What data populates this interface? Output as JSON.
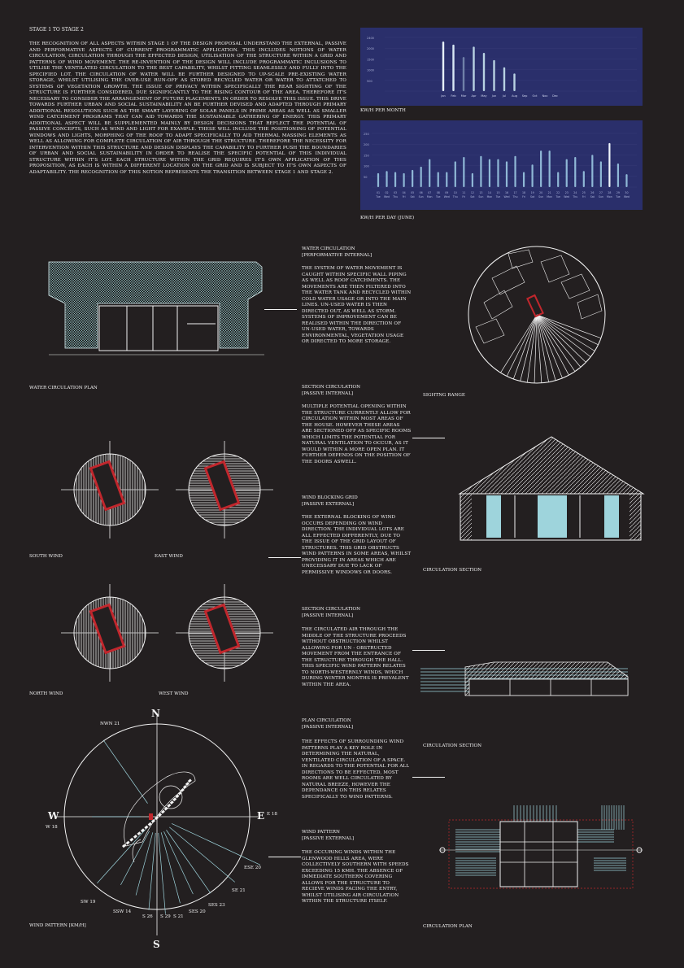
{
  "intro": {
    "heading": "STAGE 1 TO STAGE 2",
    "body": "THE RECOGNITION OF ALL ASPECTS WITHIN STAGE 1 OF THE DESIGN PROPOSAL UNDERSTAND THE EXTERNAL, PASSIVE AND PERFORMATIVE ASPECTS OF CURRENT PROGRAMMATIC APPLICATION. THIS INCLUDES NOTIONS OF WATER CIRCULATION, CIRCULATION THROUGH THE EFFECTED DESIGN, UTILISATION OF THE STRUCTURE WITHIN A GRID AND PATTERNS OF WIND MOVEMENT. THE RE-INVENTION OF THE DESIGN WILL INCLUDE PROGRAMMATIC INCLUSIONS TO UTILISE THE VENTILATED CIRCULATION TO THE BEST CAPABILITY, WHILST FITTING SEAMLESSLY AND FULLY INTO THE SPECIFIED LOT. THE CIRCULATION OF WATER WILL BE FURTHER DESIGNED TO UP-SCALE PRE-EXISTING WATER STORAGE, WHILST UTILISING THE OVER-USE RUN-OFF AS STORED RECYCLED WATER OR WATER TO ATTATCHED TO SYSTEMS OF VEGETATION GROWTH. THE ISSUE OF PRIVACY WITHIN SPECIFICALLY THE REAR SIGHTING OF THE STRUCTURE IS FURTHER CONSIDERED, DUE SIGNIFICANTLY TO THE RISING CONTOUR OF THE AREA. THEREFORE IT'S NECESSARY TO CONSIDER THE ARRANGEMENT OF FUTURE PLACEMENTS IN ORDER TO RESOLVE THIS ISSUE. THIS DRIVE TOWARDS FURTHER URBAN AND SOCIAL SUSTAINABILITY AN BE FURTHER DEVISED AND ADAPTED THROUGH PRIMARY ADDITIONAL RESOLUTIONS SUCH AS THE SMART LAYERING OF SOLAR PANELS IN PRIME AREAS AS WELL AS SMALLER WIND CATCHMENT PROGRAMS THAT CAN AID TOWARDS THE SUSTAINABLE GATHERING OF ENERGY. THIS PRIMARY ADDITIONAL ASPECT WILL BE SUPPLEMENTED MAINLY BY DESIGN DECISIONS THAT REFLECT THE POTENTIAL OF PASSIVE CONCEPTS, SUCH AS WIND AND LIGHT FOR EXAMPLE. THESE WILL INCLUDE THE POSITIONING OF POTENTIAL WINDOWS AND LIGHTS, MORPHING OF THE ROOF TO ADAPT SPECIFICALLY TO AID THERMAL MASSING ELEMENTS AS WELL AS ALLOWING FOR COMPLETE CIRCULATION OF AIR THROUGH THE STRUCTURE. THEREFORE THE NECESSITY FOR INTERVENTION WITHIN THIS STRUCTURE AND DESIGN DISPLAYS THE CAPABILITY TO FURTHER PUSH THE BOUNDARIES OF URBAN AND SOCIAL SUSTAINABILITY IN ORDER TO REALISE THE SPECIFIC POTENTIAL OF THIS INDIVIDUAL STRUCTURE WITHIN IT'S LOT. EACH STRUCTURE WITHIN THE GRID REQUIRES IT'S OWN APPLICATION OF THIS PROPOSITION, AS EACH IS WITHIN A DIFFERENT LOCATION ON THE GRID AND IS SUBJECT TO IT'S OWN ASPECTS OF ADAPTABILITY. THE RECOGNITION OF THIS NOTION REPRESENTS THE TRANSITION BETWEEN STAGE 1 AND STAGE 2."
  },
  "chart_data": [
    {
      "type": "bar",
      "title": "KW/H PER MONTH",
      "categories": [
        "Jan",
        "Feb",
        "Mar",
        "Apr",
        "May",
        "Jun",
        "Jul",
        "Aug",
        "Sep",
        "Oct",
        "Nov",
        "Dec"
      ],
      "values": [
        2400,
        2250,
        1650,
        2150,
        1850,
        1500,
        1150,
        850,
        0,
        0,
        0,
        0
      ],
      "highlight": [
        "#e6f0f8",
        "#d8e8f4",
        "#6f80a8",
        "#b8d2e2",
        "#b8d2e2",
        "#b8d2e2",
        "#b8d2e2",
        "#b8d2e2",
        "",
        "",
        "",
        ""
      ],
      "ytick_labels": [
        "2400",
        "2000",
        "1500",
        "1000",
        "500",
        ""
      ],
      "ylim": [
        0,
        2600
      ]
    },
    {
      "type": "bar",
      "title": "KW/H PER DAY (JUNE)",
      "categories": [
        "01",
        "02",
        "03",
        "04",
        "05",
        "06",
        "07",
        "08",
        "09",
        "10",
        "11",
        "12",
        "13",
        "14",
        "15",
        "16",
        "17",
        "18",
        "19",
        "20",
        "21",
        "22",
        "23",
        "24",
        "25",
        "26",
        "27",
        "28",
        "29",
        "30"
      ],
      "day_labels": [
        "Tue",
        "Wed",
        "Thu",
        "Fri",
        "Sat",
        "Sun",
        "Mon",
        "Tue",
        "Wed",
        "Thu",
        "Fri",
        "Sat",
        "Sun",
        "Mon",
        "Tue",
        "Wed",
        "Thu",
        "Fri",
        "Sat",
        "Sun",
        "Mon",
        "Tue",
        "Wed",
        "Thu",
        "Fri",
        "Sat",
        "Sun",
        "Mon",
        "Tue",
        "Wed"
      ],
      "values": [
        65,
        75,
        70,
        65,
        80,
        95,
        130,
        70,
        70,
        120,
        140,
        65,
        145,
        130,
        130,
        120,
        145,
        70,
        105,
        170,
        170,
        70,
        130,
        140,
        75,
        150,
        120,
        205,
        110,
        60
      ],
      "ytick_labels": [
        "250",
        "200",
        "150",
        "100",
        "50",
        ""
      ],
      "ylim": [
        0,
        250
      ]
    }
  ],
  "water": {
    "heading": "WATER CIRCULATION",
    "sub": "[PERFORMATIVE INTERNAL]",
    "body": "THE SYSTEM OF WATER MOVEMENT IS CAUGHT WITHIN SPECIFIC WALL PIPING AS WELL AS ROOF CATCHMENTS. THE MOVEMENTS ARE THEN FILTERED INTO THE WATER TANK AND RECYCLED WITHIN COLD WATER USAGE OR INTO THE MAIN LINES. UN-USED WATER IS THEN DIRECTED OUT, AS WELL AS STORM. SYSTEMS OF IMPROVEMENT CAN BE REALISED WITHIN THE DIRECTION OF UN-USED WATER, TOWARDS ENVIRONMENTAL, VEGETATION USAGE OR DIRECTED TO MORE STORAGE.",
    "plan_label": "WATER CIRCULATION PLAN",
    "sight_label": "SIGHTNG RANGE"
  },
  "section1": {
    "heading": "SECTION CIRCULATION",
    "sub": "[PASSIVE INTERNAL]",
    "body": "MULTIPLE POTENTIAL OPENING WITHIN THE STRUCTURE CURRENTLY ALLOW FOR CIRCULATION WITHIN MOST AREAS OF THE HOUSE. HOWEVER THESE AREAS ARE SECTIONED OFF AS SPECIFIC ROOMS WHICH LIMITS THE POTENTIAL FOR NATURAL VENTILATION TO OCCUR, AS IT WOULD WITHIN A MORE OPEN PLAN. IT FURTHER DEPENDS ON THE POSITION OF THE DOORS ASWELL.",
    "label": "CIRCULATION SECTION"
  },
  "grid": {
    "heading": "WIND BLOCKING GRID",
    "sub": "[PASSIVE EXTERNAL]",
    "body": "THE EXTERNAL BLOCKING OF WIND OCCURS DEPENDING ON WIND DIRECTION. THE INDIVIDUAL LOTS ARE ALL EFFECTED DIFFERENTLY, DUE TO THE ISSUE OF THE GRID LAYOUT OF STRUCTURES. THIS GRID OBSTRUCTS WIND PATTERNS IN SOME AREAS, WHILST PROVIDING IT IN AREAS WHICH ARE UNECESSARY DUE TO LACK OF PERMISSIVE WINDOWS OR DOORS.",
    "south": "SOUTH WIND",
    "east": "EAST WIND",
    "north": "NORTH WIND",
    "west": "WEST WIND"
  },
  "section2": {
    "heading": "SECTION CIRCULATION",
    "sub": "[PASSIVE INTERNAL]",
    "body": "THE CIRCULATED AIR THROUGH THE MIDDLE OF THE STRUCTURE PROCEEDS WITHOUT OBSTRUCTION WHILST ALLOWING FOR UN - OBSTRUCTED MOVEMENT FROM THE ENTRANCE OF THE STRUCTURE THROUGH THE HALL. THIS SPECIFIC WIND PATTERN RELATES TO NORTH-WESTERNLY WINDS, WHICH DURING WINTER MONTHS IS PREVALENT WITHIN THE AREA.",
    "label": "CIRCULATION SECTION"
  },
  "plan": {
    "heading": "PLAN CIRCULATION",
    "sub": "[PASSIVE INTERNAL]",
    "body": "THE EFFECTS OF SURROUNDING WIND PATTERNS PLAY A KEY ROLE IN DETERMINING THE NATURAL, VENTILATED CIRCULATION OF A SPACE. IN REGARDS TO THE POTENTIAL FOR ALL DIRECTIONS TO BE EFFECTED, MOST ROOMS ARE WELL CIRCULATED BY NATURAL BREEZE, HOWEVER THE DEPENDANCE ON THIS RELATES SPECIFICALLY TO WIND PATTERNS.",
    "label": "CIRCULATION PLAN"
  },
  "windpattern": {
    "heading": "WIND PATTERN",
    "sub": "[PASSIVE EXTERNAL]",
    "body": "THE OCCURING WINDS WITHIN THE GLENWOOD HILLS AREA, WERE COLLECTIVELY SOUTHERN WITH SPEEDS EXCEEDING 15 KMH. THE ABSENCE OF IMMEDIATE SOUTHERN COVERING ALLOWS FOR THE STRUCTURE TO RECIEVE WINDS FACING THE ENTRY, WHILST UTILISING AIR CIRCULATION WITHIN THE STRUCTURE ITSELF.",
    "label": "WIND PATTERN [KM/H]",
    "n": "N",
    "s": "S",
    "e": "E",
    "w": "W",
    "nwn": "NWN 21",
    "e18": "E 18",
    "w18": "W 18",
    "ese": "ESE 20",
    "se": "SE 21",
    "ses": "SES 23",
    "sw": "SW 19",
    "ssw": "SSW 14",
    "s26": "S 26",
    "s29": "S 29",
    "s21": "S 21",
    "ses20": "SES 20"
  },
  "colors": {
    "background": "#231f20",
    "chart_bg": "#2a2f6b",
    "accent_red": "#c1272d",
    "accent_cyan": "#9ed4dc"
  }
}
